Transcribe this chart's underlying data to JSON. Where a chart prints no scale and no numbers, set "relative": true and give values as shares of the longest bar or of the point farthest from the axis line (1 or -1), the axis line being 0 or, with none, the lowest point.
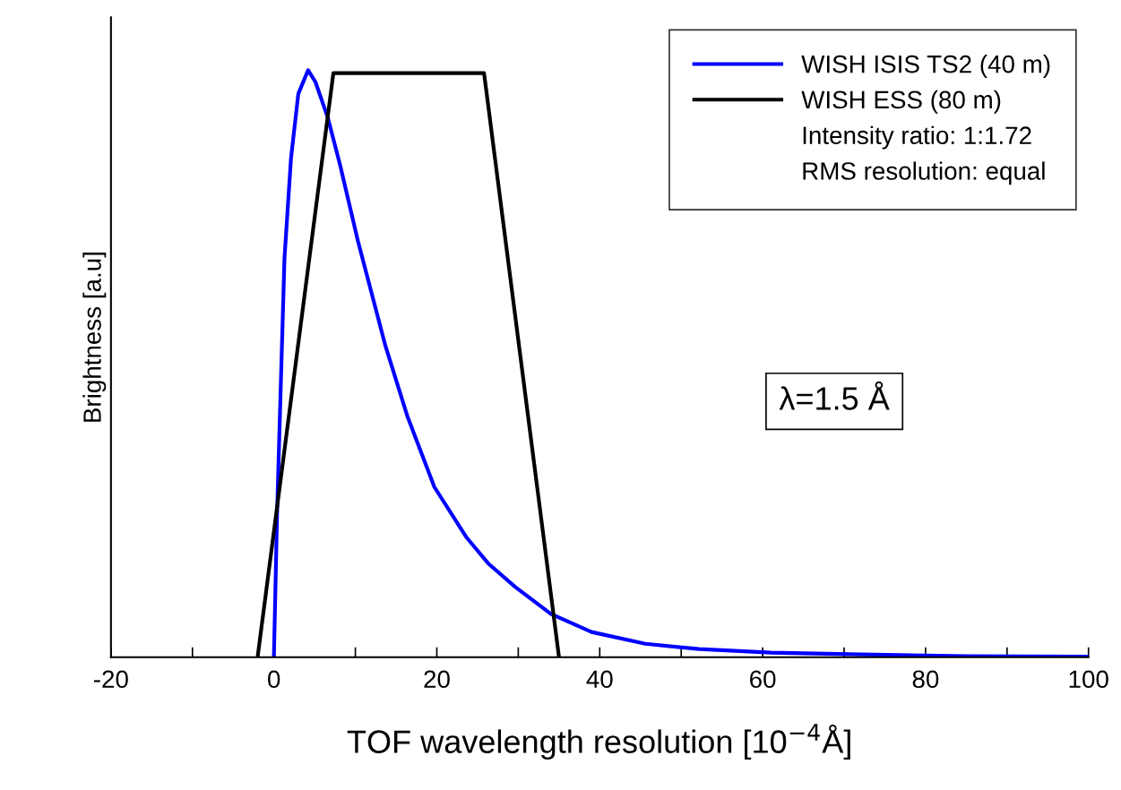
{
  "chart_data": {
    "type": "line",
    "relative": true,
    "xlabel": "TOF wavelength resolution [10$^{−4}$Å]",
    "ylabel": "Brightness [a.u]",
    "xlim": [
      -20,
      100
    ],
    "xticks": [
      -20,
      {
        "value": -10,
        "label": null
      },
      0,
      {
        "value": 10,
        "label": null
      },
      20,
      {
        "value": 30,
        "label": null
      },
      40,
      {
        "value": 50,
        "label": null
      },
      60,
      {
        "value": 70,
        "label": null
      },
      80,
      {
        "value": 90,
        "label": null
      },
      100
    ],
    "legend": "top right",
    "grid": false,
    "marker": "none",
    "line_style": "solid",
    "annotations": [
      "Intensity ratio: 1:1.72",
      "RMS resolution: equal",
      "λ=1.5 Å"
    ],
    "series": [
      {
        "name": "WISH ISIS TS2 (40 m)",
        "color": "#0000ff",
        "x": [
          0,
          0.4,
          1.3,
          2.1,
          3.0,
          4.2,
          5.1,
          6.6,
          8.1,
          10.3,
          13.7,
          16.4,
          19.7,
          23.6,
          26.3,
          29.6,
          34.0,
          39.0,
          45.6,
          52.2,
          61,
          72,
          85,
          100
        ],
        "values": [
          0,
          0.25,
          0.68,
          0.85,
          0.96,
          1.0,
          0.98,
          0.92,
          0.84,
          0.71,
          0.53,
          0.41,
          0.29,
          0.205,
          0.16,
          0.12,
          0.074,
          0.043,
          0.023,
          0.014,
          0.008,
          0.005,
          0.002,
          0.001
        ]
      },
      {
        "name": "WISH ESS (80 m)",
        "color": "#000000",
        "x": [
          -2,
          7.3,
          25.8,
          35.0
        ],
        "values": [
          0,
          0.995,
          0.995,
          0
        ]
      }
    ]
  }
}
